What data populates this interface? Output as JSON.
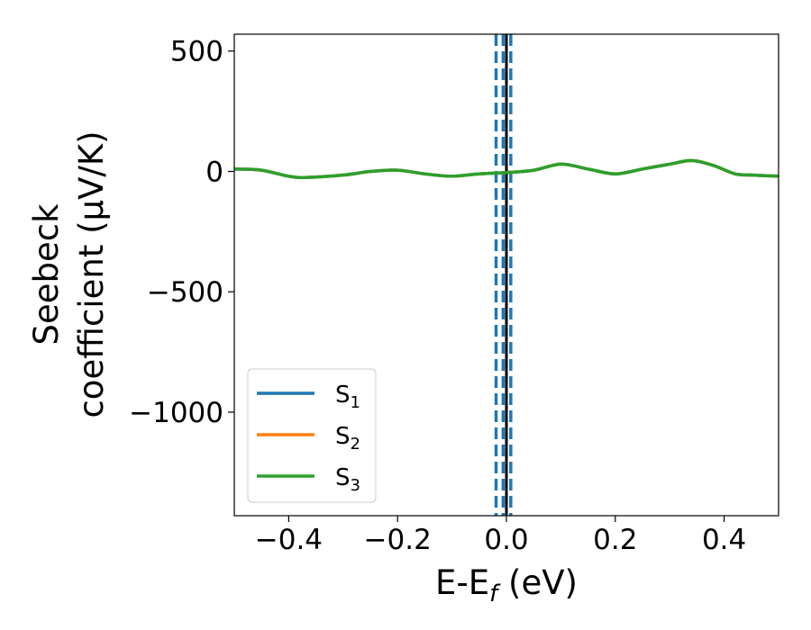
{
  "chart_data": {
    "type": "line",
    "xlabel_main": "E-E",
    "xlabel_sub": "f",
    "xlabel_tail": " (eV)",
    "ylabel_line1": "Seebeck",
    "ylabel_line2": "coefficient  (μV/K)",
    "xlim": [
      -0.5,
      0.5
    ],
    "ylim": [
      -1430,
      570
    ],
    "xticks": [
      -0.4,
      -0.2,
      0.0,
      0.2,
      0.4
    ],
    "xtick_labels": [
      "−0.4",
      "−0.2",
      "0.0",
      "0.2",
      "0.4"
    ],
    "yticks": [
      500,
      0,
      -500,
      -1000
    ],
    "ytick_labels": [
      "500",
      "0",
      "−500",
      "−1000"
    ],
    "grid": false,
    "legend_position": "lower-left",
    "vlines": [
      {
        "x": 0.0,
        "style": "solid",
        "color": "#000000"
      },
      {
        "x": -0.019,
        "style": "dashed",
        "color": "#1f77b4"
      },
      {
        "x": -0.006,
        "style": "dashed",
        "color": "#1f77b4"
      },
      {
        "x": 0.008,
        "style": "dashed",
        "color": "#1f77b4"
      }
    ],
    "x": [
      -0.5,
      -0.45,
      -0.4,
      -0.37,
      -0.3,
      -0.25,
      -0.2,
      -0.15,
      -0.1,
      -0.05,
      0.0,
      0.05,
      0.1,
      0.15,
      0.2,
      0.25,
      0.3,
      0.34,
      0.38,
      0.42,
      0.45,
      0.5
    ],
    "series": [
      {
        "name": "S",
        "sub": "1",
        "color": "#1f77b4",
        "values": [
          10,
          5,
          -20,
          -25,
          -15,
          0,
          5,
          -10,
          -20,
          -10,
          -5,
          5,
          30,
          10,
          -10,
          10,
          30,
          45,
          25,
          -10,
          -15,
          -20
        ]
      },
      {
        "name": "S",
        "sub": "2",
        "color": "#ff7f0e",
        "values": [
          10,
          5,
          -20,
          -25,
          -15,
          0,
          5,
          -10,
          -20,
          -10,
          -5,
          5,
          30,
          10,
          -10,
          10,
          30,
          45,
          25,
          -10,
          -15,
          -20
        ]
      },
      {
        "name": "S",
        "sub": "3",
        "color": "#2ca02c",
        "values": [
          10,
          5,
          -20,
          -25,
          -15,
          0,
          5,
          -10,
          -20,
          -10,
          -5,
          5,
          30,
          10,
          -10,
          10,
          30,
          45,
          25,
          -10,
          -15,
          -20
        ]
      }
    ]
  }
}
